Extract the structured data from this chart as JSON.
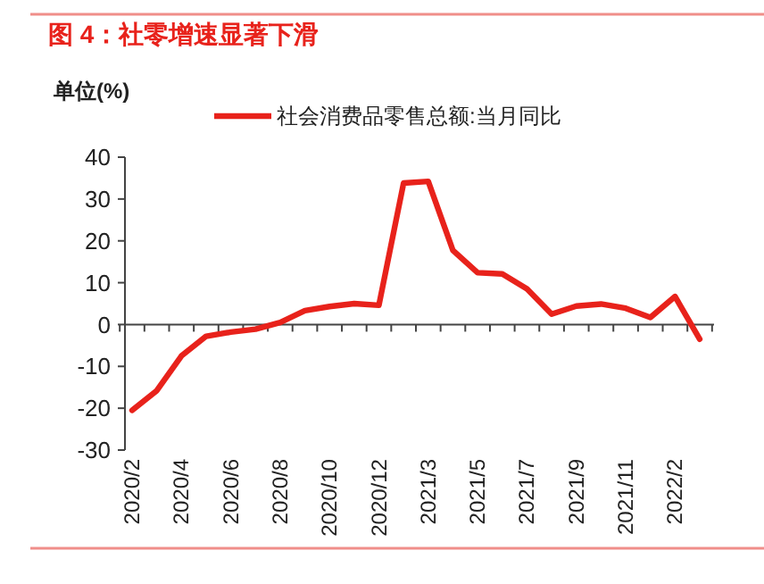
{
  "chart_data": {
    "type": "line",
    "title": "图 4：社零增速显著下滑",
    "ylabel": "单位(%)",
    "categories": [
      "2020/2",
      null,
      "2020/4",
      null,
      "2020/6",
      null,
      "2020/8",
      null,
      "2020/10",
      null,
      "2020/12",
      null,
      "2021/3",
      null,
      "2021/5",
      null,
      "2021/7",
      null,
      "2021/9",
      null,
      "2021/11",
      null,
      "2022/2",
      null
    ],
    "series": [
      {
        "name": "社会消费品零售总额:当月同比",
        "color": "#e8221b",
        "values": [
          -20.5,
          -15.8,
          -7.5,
          -2.8,
          -1.8,
          -1.1,
          0.5,
          3.3,
          4.3,
          5.0,
          4.6,
          33.8,
          34.2,
          17.7,
          12.4,
          12.1,
          8.5,
          2.5,
          4.4,
          4.9,
          3.9,
          1.7,
          6.7,
          -3.5
        ]
      }
    ],
    "ylim": [
      -30,
      40
    ],
    "yticks": [
      -30,
      -20,
      -10,
      0,
      10,
      20,
      30,
      40
    ],
    "legend": "top",
    "marker": "none",
    "line_style": "solid"
  }
}
